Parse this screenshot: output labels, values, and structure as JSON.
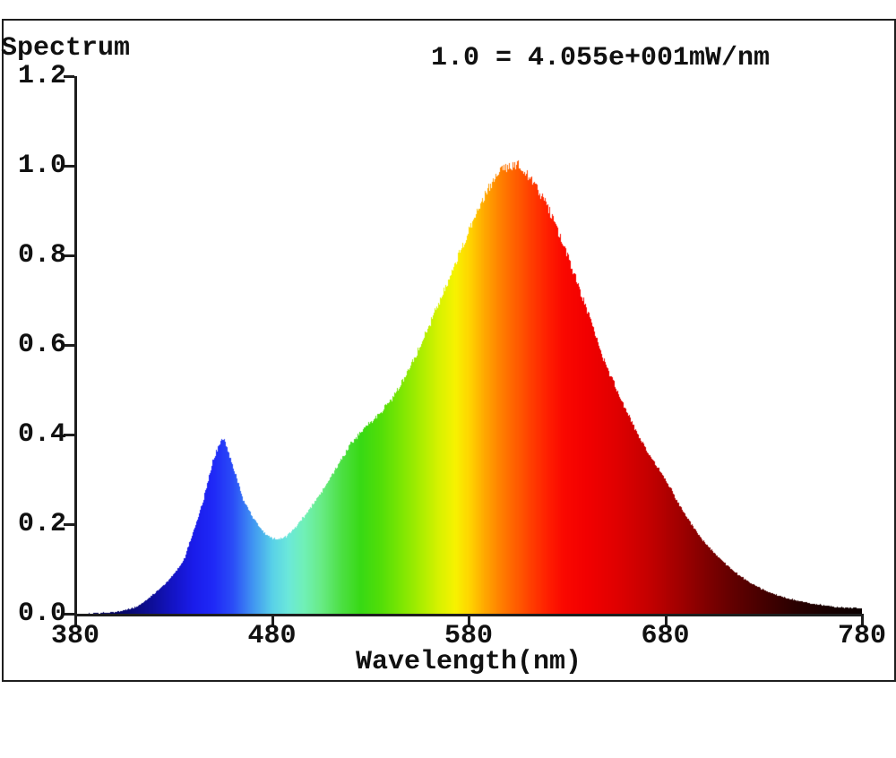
{
  "chart": {
    "title": "Spectrum",
    "scale_note": "1.0 = 4.055e+001mW/nm",
    "xlabel": "Wavelength(nm)"
  },
  "chart_data": {
    "type": "area",
    "title": "Spectrum",
    "scale_note": "1.0 = 4.055e+001mW/nm",
    "normalization_mW_per_nm_at_1_0": 40.55,
    "xlabel": "Wavelength(nm)",
    "ylabel": "",
    "xlim": [
      380,
      780
    ],
    "ylim": [
      0,
      1.2
    ],
    "grid": false,
    "legend": "none",
    "x_ticks": [
      {
        "value": 380,
        "label": "380"
      },
      {
        "value": 480,
        "label": "480"
      },
      {
        "value": 580,
        "label": "580"
      },
      {
        "value": 680,
        "label": "680"
      },
      {
        "value": 780,
        "label": "780"
      }
    ],
    "y_ticks": [
      {
        "value": 0.0,
        "label": "0.0"
      },
      {
        "value": 0.2,
        "label": "0.2"
      },
      {
        "value": 0.4,
        "label": "0.4"
      },
      {
        "value": 0.6,
        "label": "0.6"
      },
      {
        "value": 0.8,
        "label": "0.8"
      },
      {
        "value": 1.0,
        "label": "1.0"
      },
      {
        "value": 1.2,
        "label": "1.2"
      }
    ],
    "features": {
      "blue_peak": {
        "wavelength_nm": 455,
        "value": 0.395
      },
      "valley": {
        "wavelength_nm": 481,
        "value": 0.165
      },
      "main_peak": {
        "wavelength_nm": 602,
        "value": 1.0
      }
    },
    "fill_style": "per-wavelength-spectral-colors",
    "edge_noise_relative": 0.024,
    "series": [
      {
        "name": "relative spectral power",
        "x": [
          380,
          385,
          390,
          395,
          400,
          405,
          410,
          415,
          420,
          425,
          430,
          435,
          440,
          445,
          450,
          455,
          460,
          465,
          470,
          475,
          480,
          485,
          490,
          495,
          500,
          505,
          510,
          515,
          520,
          525,
          530,
          535,
          540,
          545,
          550,
          555,
          560,
          565,
          570,
          575,
          580,
          585,
          590,
          595,
          600,
          605,
          610,
          615,
          620,
          625,
          630,
          635,
          640,
          645,
          650,
          655,
          660,
          665,
          670,
          675,
          680,
          685,
          690,
          695,
          700,
          705,
          710,
          715,
          720,
          725,
          730,
          735,
          740,
          745,
          750,
          755,
          760,
          765,
          770,
          775,
          780
        ],
        "y": [
          0.0,
          0.0,
          0.001,
          0.002,
          0.004,
          0.008,
          0.014,
          0.027,
          0.045,
          0.065,
          0.088,
          0.12,
          0.185,
          0.255,
          0.345,
          0.395,
          0.33,
          0.258,
          0.215,
          0.185,
          0.168,
          0.166,
          0.183,
          0.21,
          0.24,
          0.272,
          0.306,
          0.345,
          0.38,
          0.405,
          0.428,
          0.45,
          0.475,
          0.508,
          0.55,
          0.596,
          0.645,
          0.698,
          0.75,
          0.803,
          0.855,
          0.905,
          0.95,
          0.985,
          1.0,
          1.0,
          0.978,
          0.948,
          0.91,
          0.858,
          0.8,
          0.742,
          0.678,
          0.612,
          0.55,
          0.505,
          0.452,
          0.408,
          0.368,
          0.333,
          0.3,
          0.258,
          0.22,
          0.188,
          0.158,
          0.135,
          0.113,
          0.094,
          0.078,
          0.064,
          0.053,
          0.044,
          0.037,
          0.031,
          0.026,
          0.022,
          0.019,
          0.016,
          0.014,
          0.013,
          0.012
        ]
      }
    ],
    "spectral_color_stops": [
      [
        380,
        "#000047"
      ],
      [
        400,
        "#030361"
      ],
      [
        410,
        "#0a0a7a"
      ],
      [
        420,
        "#0f0f9e"
      ],
      [
        430,
        "#1414c7"
      ],
      [
        440,
        "#1a1ceb"
      ],
      [
        450,
        "#1f29f7"
      ],
      [
        460,
        "#2b4df7"
      ],
      [
        470,
        "#4094f2"
      ],
      [
        480,
        "#59d1e8"
      ],
      [
        488,
        "#6be8db"
      ],
      [
        496,
        "#70f0b8"
      ],
      [
        505,
        "#68eb85"
      ],
      [
        515,
        "#4de045"
      ],
      [
        525,
        "#38d914"
      ],
      [
        535,
        "#52de08"
      ],
      [
        545,
        "#7ae603"
      ],
      [
        555,
        "#a8ed00"
      ],
      [
        565,
        "#d9f200"
      ],
      [
        573,
        "#f7f200"
      ],
      [
        580,
        "#ffd600"
      ],
      [
        588,
        "#ffa800"
      ],
      [
        596,
        "#ff8000"
      ],
      [
        604,
        "#ff5e00"
      ],
      [
        612,
        "#ff3d00"
      ],
      [
        620,
        "#ff1f00"
      ],
      [
        628,
        "#fa0800"
      ],
      [
        640,
        "#f20000"
      ],
      [
        655,
        "#e00000"
      ],
      [
        670,
        "#c70000"
      ],
      [
        685,
        "#a60000"
      ],
      [
        700,
        "#820000"
      ],
      [
        715,
        "#610000"
      ],
      [
        730,
        "#450000"
      ],
      [
        745,
        "#2b0000"
      ],
      [
        760,
        "#1a0000"
      ],
      [
        780,
        "#0a0000"
      ]
    ]
  }
}
